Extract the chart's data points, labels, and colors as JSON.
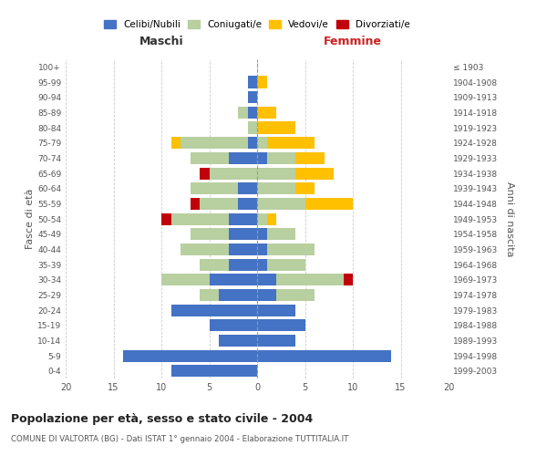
{
  "age_groups": [
    "0-4",
    "5-9",
    "10-14",
    "15-19",
    "20-24",
    "25-29",
    "30-34",
    "35-39",
    "40-44",
    "45-49",
    "50-54",
    "55-59",
    "60-64",
    "65-69",
    "70-74",
    "75-79",
    "80-84",
    "85-89",
    "90-94",
    "95-99",
    "100+"
  ],
  "birth_years": [
    "1999-2003",
    "1994-1998",
    "1989-1993",
    "1984-1988",
    "1979-1983",
    "1974-1978",
    "1969-1973",
    "1964-1968",
    "1959-1963",
    "1954-1958",
    "1949-1953",
    "1944-1948",
    "1939-1943",
    "1934-1938",
    "1929-1933",
    "1924-1928",
    "1919-1923",
    "1914-1918",
    "1909-1913",
    "1904-1908",
    "≤ 1903"
  ],
  "maschi": {
    "celibi": [
      9,
      14,
      4,
      5,
      9,
      4,
      5,
      3,
      3,
      3,
      3,
      2,
      2,
      0,
      3,
      1,
      0,
      1,
      1,
      1,
      0
    ],
    "coniugati": [
      0,
      0,
      0,
      0,
      0,
      2,
      5,
      3,
      5,
      4,
      6,
      4,
      5,
      5,
      4,
      7,
      1,
      1,
      0,
      0,
      0
    ],
    "vedovi": [
      0,
      0,
      0,
      0,
      0,
      0,
      0,
      0,
      0,
      0,
      0,
      0,
      0,
      0,
      0,
      1,
      0,
      0,
      0,
      0,
      0
    ],
    "divorziati": [
      0,
      0,
      0,
      0,
      0,
      0,
      0,
      0,
      0,
      0,
      1,
      1,
      0,
      1,
      0,
      0,
      0,
      0,
      0,
      0,
      0
    ]
  },
  "femmine": {
    "nubili": [
      0,
      14,
      4,
      5,
      4,
      2,
      2,
      1,
      1,
      1,
      0,
      0,
      0,
      0,
      1,
      0,
      0,
      0,
      0,
      0,
      0
    ],
    "coniugate": [
      0,
      0,
      0,
      0,
      0,
      4,
      7,
      4,
      5,
      3,
      1,
      5,
      4,
      4,
      3,
      1,
      0,
      0,
      0,
      0,
      0
    ],
    "vedove": [
      0,
      0,
      0,
      0,
      0,
      0,
      0,
      0,
      0,
      0,
      1,
      5,
      2,
      4,
      3,
      5,
      4,
      2,
      0,
      1,
      0
    ],
    "divorziate": [
      0,
      0,
      0,
      0,
      0,
      0,
      1,
      0,
      0,
      0,
      0,
      0,
      0,
      0,
      0,
      0,
      0,
      0,
      0,
      0,
      0
    ]
  },
  "colors": {
    "celibi": "#4472c4",
    "coniugati": "#b8cfa0",
    "vedovi": "#ffc000",
    "divorziati": "#c0000a"
  },
  "title": "Popolazione per età, sesso e stato civile - 2004",
  "subtitle": "COMUNE DI VALTORTA (BG) - Dati ISTAT 1° gennaio 2004 - Elaborazione TUTTITALIA.IT",
  "xlabel_left": "Maschi",
  "xlabel_right": "Femmine",
  "ylabel_left": "Fasce di età",
  "ylabel_right": "Anni di nascita",
  "xlim": 20,
  "bg_color": "#ffffff",
  "grid_color": "#cccccc",
  "legend_labels": [
    "Celibi/Nubili",
    "Coniugati/e",
    "Vedovi/e",
    "Divorziati/e"
  ]
}
